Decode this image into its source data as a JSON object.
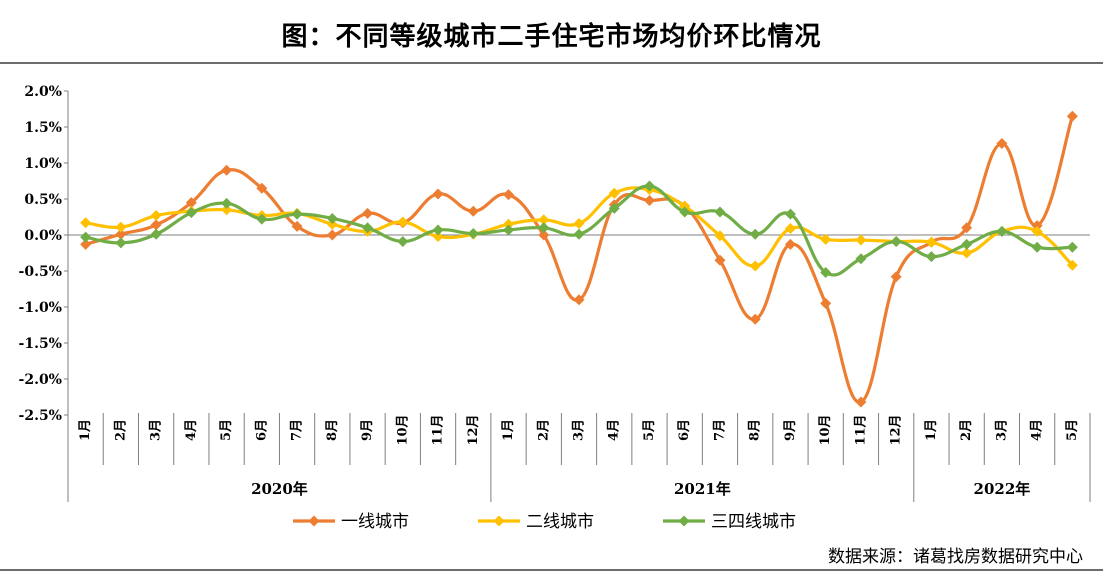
{
  "title": "图：不同等级城市二手住宅市场均价环比情况",
  "source": "数据来源：诸葛找房数据研究中心",
  "chart_data": {
    "type": "line",
    "ylim": [
      -2.5,
      2.0
    ],
    "yticks": [
      2.0,
      1.5,
      1.0,
      0.5,
      0.0,
      -0.5,
      -1.0,
      -1.5,
      -2.0,
      -2.5
    ],
    "ytick_labels": [
      "2.0%",
      "1.5%",
      "1.0%",
      "0.5%",
      "0.0%",
      "-0.5%",
      "-1.0%",
      "-1.5%",
      "-2.0%",
      "-2.5%"
    ],
    "categories": [
      "1月",
      "2月",
      "3月",
      "4月",
      "5月",
      "6月",
      "7月",
      "8月",
      "9月",
      "10月",
      "11月",
      "12月",
      "1月",
      "2月",
      "3月",
      "4月",
      "5月",
      "6月",
      "7月",
      "8月",
      "9月",
      "10月",
      "11月",
      "12月",
      "1月",
      "2月",
      "3月",
      "4月",
      "5月"
    ],
    "year_groups": [
      {
        "label": "2020年",
        "start": 0,
        "count": 12
      },
      {
        "label": "2021年",
        "start": 12,
        "count": 12
      },
      {
        "label": "2022年",
        "start": 24,
        "count": 5
      }
    ],
    "legend_position": "bottom",
    "series": [
      {
        "name": "一线城市",
        "color": "#ED7D31",
        "values": [
          -0.13,
          0.01,
          0.14,
          0.45,
          0.9,
          0.65,
          0.12,
          0.0,
          0.3,
          0.17,
          0.57,
          0.33,
          0.56,
          0.0,
          -0.9,
          0.42,
          0.48,
          0.4,
          -0.35,
          -1.17,
          -0.13,
          -0.95,
          -2.32,
          -0.58,
          -0.1,
          0.1,
          1.27,
          0.13,
          1.65
        ]
      },
      {
        "name": "二线城市",
        "color": "#FFC000",
        "values": [
          0.17,
          0.11,
          0.27,
          0.33,
          0.35,
          0.27,
          0.3,
          0.15,
          0.05,
          0.18,
          -0.02,
          0.01,
          0.15,
          0.21,
          0.16,
          0.58,
          0.63,
          0.4,
          -0.01,
          -0.43,
          0.09,
          -0.06,
          -0.07,
          -0.09,
          -0.1,
          -0.25,
          0.05,
          0.05,
          -0.42
        ]
      },
      {
        "name": "三四线城市",
        "color": "#70AD47",
        "values": [
          -0.03,
          -0.11,
          0.01,
          0.31,
          0.44,
          0.22,
          0.29,
          0.23,
          0.1,
          -0.09,
          0.07,
          0.02,
          0.07,
          0.1,
          0.01,
          0.37,
          0.68,
          0.32,
          0.32,
          0.01,
          0.29,
          -0.52,
          -0.33,
          -0.09,
          -0.3,
          -0.13,
          0.05,
          -0.17,
          -0.17
        ]
      }
    ]
  }
}
